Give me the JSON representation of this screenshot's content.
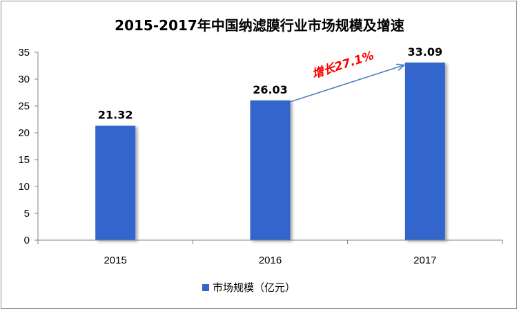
{
  "chart_data": {
    "type": "bar",
    "title": "2015-2017年中国纳滤膜行业市场规模及增速",
    "categories": [
      "2015",
      "2016",
      "2017"
    ],
    "series": [
      {
        "name": "市场规模（亿元）",
        "values": [
          21.32,
          26.03,
          33.09
        ],
        "color": "#3366cc"
      }
    ],
    "data_labels": [
      "21.32",
      "26.03",
      "33.09"
    ],
    "ylim": [
      0,
      35
    ],
    "yticks": [
      0,
      5,
      10,
      15,
      20,
      25,
      30,
      35
    ],
    "legend_position": "bottom",
    "grid": false,
    "annotation": {
      "text": "增长27.1%",
      "color": "#ff0000",
      "arrow_color": "#4a7ebb",
      "from_category": "2016",
      "to_category": "2017"
    }
  }
}
